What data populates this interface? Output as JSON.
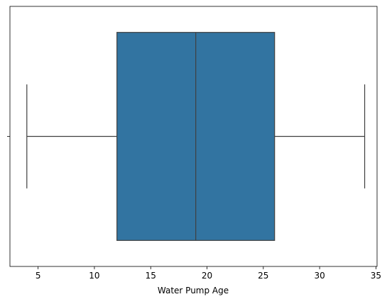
{
  "chart_data": {
    "type": "box",
    "x_label": "Water Pump Age",
    "categories": [
      null
    ],
    "whisker_low": 4,
    "q1": 12,
    "median": 19,
    "q3": 26,
    "whisker_high": 34,
    "color": "#3274a1",
    "xlim": [
      2.5,
      35.1
    ],
    "xticks": [
      5,
      10,
      15,
      20,
      25,
      30,
      35
    ]
  }
}
